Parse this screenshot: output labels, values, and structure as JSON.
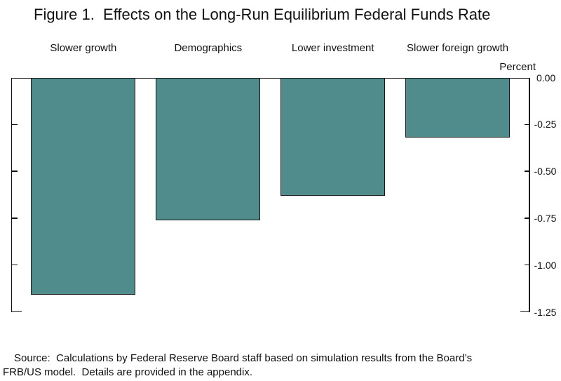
{
  "figure": {
    "title": "Figure 1.  Effects on the Long-Run Equilibrium Federal Funds Rate"
  },
  "chart_data": {
    "type": "bar",
    "title": "Figure 1.  Effects on the Long-Run Equilibrium Federal Funds Rate",
    "categories": [
      "Slower growth",
      "Demographics",
      "Lower investment",
      "Slower foreign growth"
    ],
    "values": [
      -1.16,
      -0.76,
      -0.63,
      -0.32
    ],
    "unit_label": "Percent",
    "xlabel": "",
    "ylabel": "Percent",
    "y_axis": {
      "side": "right",
      "ylim": [
        -1.25,
        0
      ],
      "tick_labels": [
        "0.00",
        "-0.25",
        "-0.50",
        "-0.75",
        "-1.00",
        "-1.25"
      ],
      "tick_values": [
        0,
        -0.25,
        -0.5,
        -0.75,
        -1.0,
        -1.25
      ]
    },
    "grid": false,
    "legend": false,
    "bar_color": "#508C8B",
    "bar_border_color": "#161616",
    "axis_color": "#111111"
  },
  "source_note": {
    "line1": "Source:  Calculations by Federal Reserve Board staff based on simulation results from the Board’s",
    "line2": "FRB/US model.  Details are provided in the appendix."
  }
}
